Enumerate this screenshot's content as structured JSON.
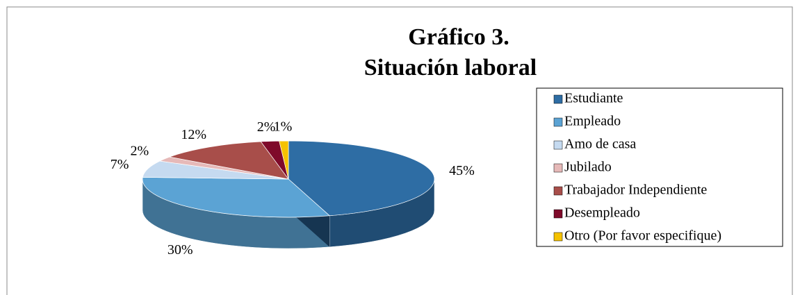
{
  "chart_data": {
    "type": "pie3d",
    "title": "Gráfico 3.",
    "subtitle": "Situación laboral",
    "categories": [
      "Estudiante",
      "Empleado",
      "Amo de casa",
      "Jubilado",
      "Trabajador Independiente",
      "Desempleado",
      "Otro (Por favor especifique)"
    ],
    "values": [
      45,
      30,
      7,
      2,
      12,
      2,
      1
    ],
    "value_labels": [
      "45%",
      "30%",
      "7%",
      "2%",
      "12%",
      "2%",
      "1%"
    ],
    "colors": [
      "#2e6da4",
      "#5ba3d4",
      "#c5daf0",
      "#e6b9b8",
      "#a84e4a",
      "#7f0a2a",
      "#f5c200"
    ],
    "legend": "right"
  }
}
